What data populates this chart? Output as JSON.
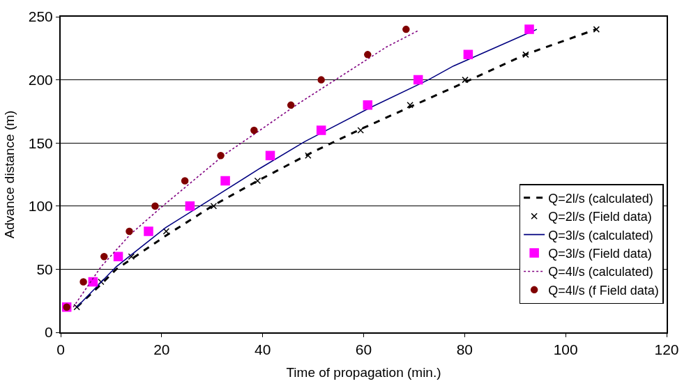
{
  "chart_data": {
    "type": "line",
    "xlabel": "Time of propagation (min.)",
    "ylabel": "Advance distance (m)",
    "xlim": [
      0,
      120
    ],
    "xticks": [
      0,
      20,
      40,
      60,
      80,
      100,
      120
    ],
    "ylim": [
      0,
      250
    ],
    "yticks": [
      0,
      50,
      100,
      150,
      200,
      250
    ],
    "grid": "y",
    "legend": "right",
    "series": [
      {
        "name": "Q=2l/s (calculated)",
        "color": "#000000",
        "line_style": "dashed",
        "marker": "none",
        "x": [
          3.2,
          8,
          11,
          14,
          21,
          30,
          39,
          50,
          60,
          70,
          80,
          92,
          106
        ],
        "values": [
          20,
          38,
          50,
          58,
          77,
          100,
          120,
          143,
          162,
          180,
          198,
          220,
          240
        ]
      },
      {
        "name": "Q=2l/s (Field data)",
        "type": "scatter",
        "color": "#000000",
        "marker": "cross",
        "x": [
          3.2,
          8.0,
          14.0,
          20.9,
          30.3,
          39.0,
          49.0,
          59.4,
          69.2,
          80.1,
          92.1,
          106.1
        ],
        "values": [
          20,
          40,
          60,
          80,
          100,
          120,
          140,
          160,
          180,
          200,
          220,
          240
        ]
      },
      {
        "name": "Q=3l/s (calculated)",
        "color": "#000080",
        "line_style": "solid",
        "marker": "none",
        "x": [
          3.2,
          11,
          20.8,
          30,
          39.5,
          48.3,
          61.3,
          72.8,
          77.8,
          94.3
        ],
        "values": [
          20,
          52,
          83,
          106,
          130,
          151,
          178,
          200,
          211,
          240
        ]
      },
      {
        "name": "Q=3l/s (Field data)",
        "type": "scatter",
        "color": "#ff00ff",
        "marker": "square",
        "x": [
          1.2,
          6.4,
          11.4,
          17.4,
          25.6,
          32.6,
          41.5,
          51.6,
          60.8,
          70.8,
          80.7,
          92.8
        ],
        "values": [
          20,
          40,
          60,
          80,
          100,
          120,
          140,
          160,
          180,
          200,
          220,
          240
        ]
      },
      {
        "name": "Q=4l/s (calculated)",
        "color": "#800080",
        "line_style": "dotted",
        "marker": "none",
        "x": [
          2.5,
          8,
          13.9,
          20.2,
          25.9,
          32.5,
          39.8,
          47,
          54.4,
          64.5,
          70.8
        ],
        "values": [
          20,
          52,
          78,
          100,
          119,
          141,
          161,
          181,
          200,
          226,
          239
        ]
      },
      {
        "name": "Q=4l/s (f Field data)",
        "type": "scatter",
        "color": "#800000",
        "marker": "circle",
        "x": [
          1.2,
          4.5,
          8.6,
          13.6,
          18.7,
          24.6,
          31.7,
          38.3,
          45.6,
          51.6,
          60.8,
          68.4
        ],
        "values": [
          20,
          40,
          60,
          80,
          100,
          120,
          140,
          160,
          180,
          200,
          220,
          240
        ]
      }
    ]
  }
}
